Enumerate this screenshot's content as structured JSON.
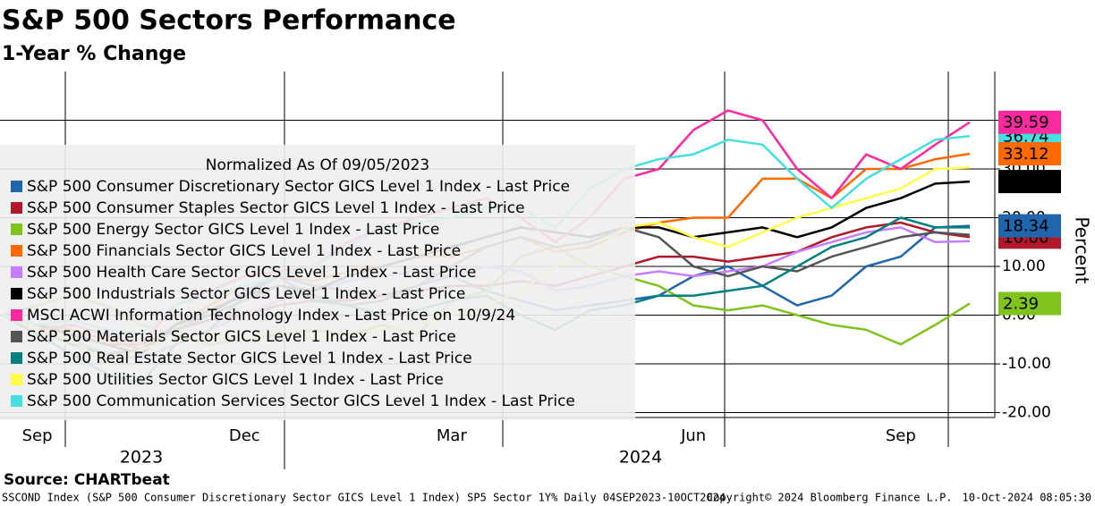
{
  "chart_data": {
    "type": "line",
    "title": "S&P 500 Sectors Performance",
    "subtitle": "1-Year % Change",
    "y_label": "Percent",
    "legend_title": "Normalized As Of 09/05/2023",
    "source": "Source: CHARTbeat",
    "footer": [
      "SSCOND Index (S&P 500 Consumer Discretionary Sector GICS Level 1 Index) SP5 Sector 1Y%  Daily 04SEP2023-10OCT2024",
      "Copyright© 2024 Bloomberg Finance L.P.",
      "10-Oct-2024 08:05:30"
    ],
    "year_labels": [
      "2023",
      "2024"
    ],
    "categories": [
      null,
      "Sep",
      null,
      null,
      null,
      null,
      null,
      "Dec",
      null,
      null,
      null,
      null,
      null,
      "Mar",
      null,
      null,
      null,
      null,
      null,
      null,
      "Jun",
      null,
      null,
      null,
      null,
      null,
      "Sep",
      null,
      null
    ],
    "ylim": [
      -21,
      50
    ],
    "yticks": [
      {
        "value": -20,
        "label": "-20.00"
      },
      {
        "value": -10,
        "label": "-10.00"
      },
      {
        "value": 0,
        "label": "0.00"
      },
      {
        "value": 10,
        "label": "10.00"
      },
      {
        "value": 20,
        "label": "20.00"
      },
      {
        "value": 30,
        "label": "30.00"
      },
      {
        "value": 40,
        "label": "40.00"
      }
    ],
    "grid": true,
    "legend": "upper left",
    "series": [
      {
        "name": "S&P 500 Consumer Discretionary Sector GICS Level 1 Index - Last Price",
        "color": "#2166ac",
        "values": [
          0,
          -2,
          -3,
          -5,
          -7,
          -2,
          0,
          5,
          8,
          6,
          5,
          4,
          6,
          8,
          5,
          3,
          1,
          2,
          3,
          4,
          8,
          10,
          6,
          2,
          4,
          10,
          12,
          18,
          18.34
        ],
        "value_labels": [
          null,
          null,
          null,
          null,
          null,
          null,
          null,
          null,
          null,
          null,
          null,
          null,
          null,
          null,
          null,
          null,
          null,
          null,
          null,
          null,
          null,
          null,
          null,
          null,
          null,
          null,
          null,
          null,
          "18.34"
        ]
      },
      {
        "name": "S&P 500 Consumer Staples Sector GICS Level 1 Index - Last Price",
        "color": "#b2182b",
        "values": [
          0,
          -2,
          -4,
          -6,
          -6,
          -3,
          -1,
          0,
          2,
          3,
          3,
          4,
          5,
          6,
          6,
          7,
          6,
          8,
          10,
          12,
          12,
          11,
          12,
          13,
          16,
          18,
          19,
          17,
          16
        ],
        "value_labels": [
          null,
          null,
          null,
          null,
          null,
          null,
          null,
          null,
          null,
          null,
          null,
          null,
          null,
          null,
          null,
          null,
          null,
          null,
          null,
          null,
          null,
          null,
          null,
          null,
          null,
          null,
          null,
          null,
          "16.00"
        ]
      },
      {
        "name": "S&P 500 Energy Sector GICS Level 1 Index - Last Price",
        "color": "#7fc31c",
        "values": [
          0,
          2,
          4,
          2,
          -2,
          -4,
          -6,
          -5,
          -4,
          -3,
          -4,
          -2,
          -4,
          3,
          5,
          12,
          14,
          10,
          8,
          6,
          2,
          1,
          2,
          0,
          -2,
          -3,
          -6,
          -2,
          2.39
        ],
        "value_labels": [
          null,
          null,
          null,
          null,
          null,
          null,
          null,
          null,
          null,
          null,
          null,
          null,
          null,
          null,
          null,
          null,
          null,
          null,
          null,
          null,
          null,
          null,
          null,
          null,
          null,
          null,
          null,
          null,
          "2.39"
        ]
      },
      {
        "name": "S&P 500 Financials Sector GICS Level 1 Index - Last Price",
        "color": "#ff6a00",
        "values": [
          0,
          -2,
          -3,
          -5,
          -7,
          -2,
          2,
          6,
          8,
          7,
          9,
          10,
          12,
          12,
          14,
          16,
          13,
          14,
          17,
          19,
          20,
          20,
          28,
          28,
          24,
          30,
          30,
          32,
          33.12
        ],
        "value_labels": [
          null,
          null,
          null,
          null,
          null,
          null,
          null,
          null,
          null,
          null,
          null,
          null,
          null,
          null,
          null,
          null,
          null,
          null,
          null,
          null,
          null,
          null,
          null,
          null,
          null,
          null,
          null,
          null,
          "33.12"
        ]
      },
      {
        "name": "S&P 500 Health Care Sector GICS Level 1 Index - Last Price",
        "color": "#c77dff",
        "values": [
          0,
          -3,
          -5,
          -8,
          -9,
          -6,
          -3,
          0,
          3,
          5,
          7,
          8,
          9,
          8,
          10,
          9,
          5,
          6,
          8,
          9,
          8,
          9,
          10,
          13,
          15,
          17,
          18,
          15,
          15.2
        ]
      },
      {
        "name": "S&P 500 Industrials Sector GICS Level 1 Index - Last Price",
        "color": "#000000",
        "values": [
          0,
          -2,
          -4,
          -6,
          -8,
          -2,
          1,
          4,
          6,
          5,
          8,
          10,
          12,
          14,
          16,
          18,
          17,
          16,
          18,
          18,
          16,
          17,
          18,
          16,
          18,
          22,
          24,
          27,
          27.42
        ],
        "value_labels": [
          null,
          null,
          null,
          null,
          null,
          null,
          null,
          null,
          null,
          null,
          null,
          null,
          null,
          null,
          null,
          null,
          null,
          null,
          null,
          null,
          null,
          null,
          null,
          null,
          null,
          null,
          null,
          null,
          "27.42"
        ]
      },
      {
        "name": "MSCI ACWI Information Technology Index - Last Price on 10/9/24",
        "color": "#ff2a9d",
        "values": [
          0,
          -3,
          -2,
          -4,
          -6,
          2,
          5,
          8,
          9,
          10,
          15,
          18,
          20,
          22,
          24,
          20,
          15,
          20,
          28,
          30,
          38,
          42,
          40,
          30,
          24,
          33,
          30,
          35,
          39.59
        ],
        "value_labels": [
          null,
          null,
          null,
          null,
          null,
          null,
          null,
          null,
          null,
          null,
          null,
          null,
          null,
          null,
          null,
          null,
          null,
          null,
          null,
          null,
          null,
          null,
          null,
          null,
          null,
          null,
          null,
          null,
          "39.59"
        ]
      },
      {
        "name": "S&P 500 Materials Sector GICS Level 1 Index - Last Price",
        "color": "#555555",
        "values": [
          0,
          -3,
          -6,
          -8,
          -7,
          -3,
          0,
          3,
          6,
          4,
          2,
          3,
          6,
          10,
          14,
          16,
          14,
          15,
          18,
          16,
          10,
          8,
          10,
          9,
          12,
          14,
          16,
          17,
          16.5
        ]
      },
      {
        "name": "S&P 500 Real Estate Sector GICS Level 1 Index - Last Price",
        "color": "#00807f",
        "values": [
          0,
          -4,
          -8,
          -12,
          -14,
          -6,
          -3,
          4,
          8,
          3,
          2,
          0,
          1,
          3,
          4,
          0,
          -3,
          1,
          2,
          4,
          4,
          5,
          6,
          10,
          14,
          16,
          20,
          18,
          18
        ]
      },
      {
        "name": "S&P 500 Utilities Sector GICS Level 1 Index - Last Price",
        "color": "#ffff4a",
        "values": [
          0,
          -3,
          -5,
          -10,
          -7,
          -5,
          -4,
          -5,
          -3,
          -5,
          -4,
          -3,
          -2,
          0,
          2,
          5,
          10,
          12,
          18,
          19,
          16,
          14,
          17,
          20,
          22,
          24,
          26,
          30,
          30.3
        ]
      },
      {
        "name": "S&P 500 Communication Services Sector GICS Level 1 Index - Last Price",
        "color": "#45dfe0",
        "values": [
          0,
          -2,
          -1,
          -3,
          -4,
          2,
          4,
          6,
          8,
          10,
          14,
          18,
          19,
          20,
          22,
          22,
          18,
          26,
          30,
          32,
          33,
          36,
          35,
          28,
          22,
          28,
          32,
          36,
          36.74
        ],
        "value_labels": [
          null,
          null,
          null,
          null,
          null,
          null,
          null,
          null,
          null,
          null,
          null,
          null,
          null,
          null,
          null,
          null,
          null,
          null,
          null,
          null,
          null,
          null,
          null,
          null,
          null,
          null,
          null,
          null,
          "36.74"
        ]
      }
    ]
  }
}
